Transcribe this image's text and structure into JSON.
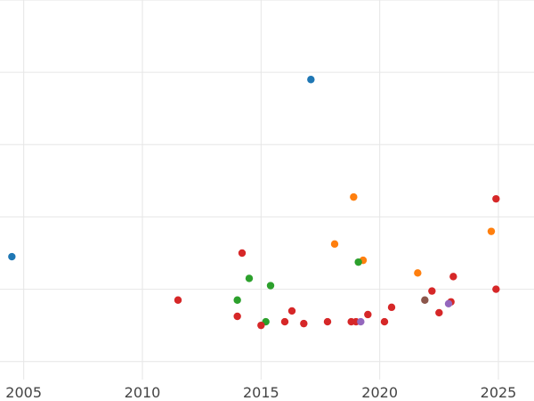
{
  "chart_data": {
    "type": "scatter",
    "title": "",
    "xlabel": "",
    "ylabel": "",
    "grid": true,
    "legend": "none",
    "xlim": [
      2004.0,
      2026.5
    ],
    "ylim": [
      0,
      10.5
    ],
    "x_ticks": [
      2005,
      2010,
      2015,
      2020,
      2025
    ],
    "x_tick_labels": [
      "2005",
      "2010",
      "2015",
      "2020",
      "2025"
    ],
    "y_gridlines": [
      0.5,
      2.5,
      4.5,
      6.5,
      8.5,
      10.5
    ],
    "series": [
      {
        "color": "#1f77b4",
        "points": [
          [
            2004.5,
            3.4
          ],
          [
            2017.1,
            8.3
          ]
        ]
      },
      {
        "color": "#ff7f0e",
        "points": [
          [
            2018.1,
            3.75
          ],
          [
            2018.9,
            5.05
          ],
          [
            2019.3,
            3.3
          ],
          [
            2021.6,
            2.95
          ],
          [
            2024.7,
            4.1
          ]
        ]
      },
      {
        "color": "#2ca02c",
        "points": [
          [
            2014.0,
            2.2
          ],
          [
            2014.5,
            2.8
          ],
          [
            2015.2,
            1.6
          ],
          [
            2015.4,
            2.6
          ],
          [
            2019.1,
            3.25
          ]
        ]
      },
      {
        "color": "#d62728",
        "points": [
          [
            2011.5,
            2.2
          ],
          [
            2014.0,
            1.75
          ],
          [
            2014.2,
            3.5
          ],
          [
            2015.0,
            1.5
          ],
          [
            2016.0,
            1.6
          ],
          [
            2016.3,
            1.9
          ],
          [
            2016.8,
            1.55
          ],
          [
            2017.8,
            1.6
          ],
          [
            2018.8,
            1.6
          ],
          [
            2019.0,
            1.6
          ],
          [
            2019.5,
            1.8
          ],
          [
            2020.2,
            1.6
          ],
          [
            2020.5,
            2.0
          ],
          [
            2022.2,
            2.45
          ],
          [
            2022.5,
            1.85
          ],
          [
            2023.0,
            2.15
          ],
          [
            2023.1,
            2.85
          ],
          [
            2024.9,
            2.5
          ],
          [
            2024.9,
            5.0
          ]
        ]
      },
      {
        "color": "#9467bd",
        "points": [
          [
            2019.2,
            1.6
          ],
          [
            2022.9,
            2.1
          ]
        ]
      },
      {
        "color": "#8c564b",
        "points": [
          [
            2021.9,
            2.2
          ]
        ]
      }
    ]
  }
}
